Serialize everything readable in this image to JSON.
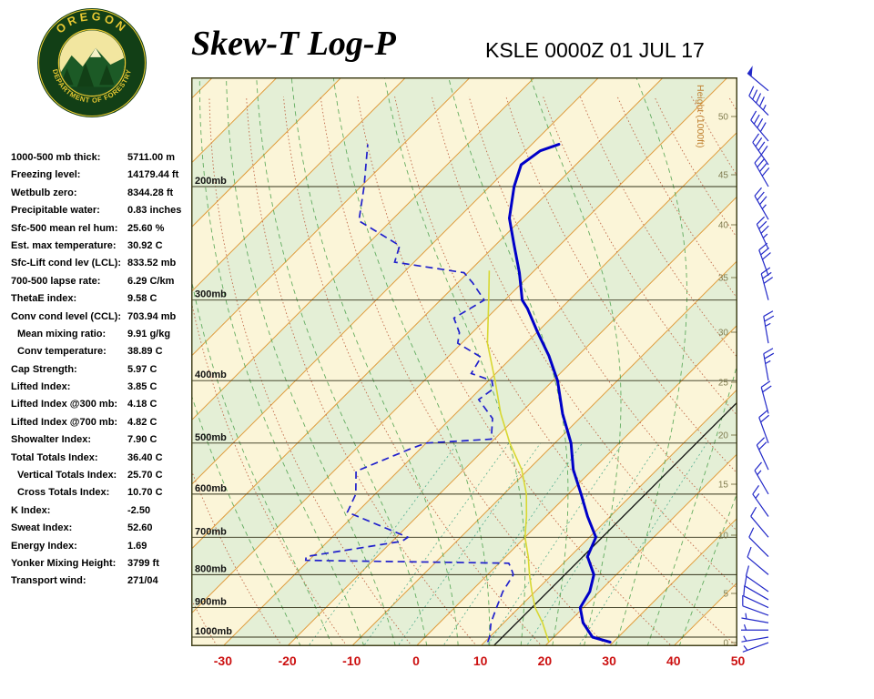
{
  "header": {
    "title": "Skew-T Log-P",
    "station_line": "KSLE 0000Z 01 JUL 17",
    "logo_top": "OREGON",
    "logo_bottom": "DEPARTMENT OF FORESTRY"
  },
  "indices": [
    {
      "label": "1000-500 mb thick:",
      "value": "5711.00 m",
      "indent": false
    },
    {
      "label": "Freezing level:",
      "value": "14179.44 ft",
      "indent": false
    },
    {
      "label": "Wetbulb zero:",
      "value": "8344.28 ft",
      "indent": false
    },
    {
      "label": "Precipitable water:",
      "value": "0.83 inches",
      "indent": false
    },
    {
      "label": "Sfc-500 mean rel hum:",
      "value": "25.60 %",
      "indent": false
    },
    {
      "label": "Est. max temperature:",
      "value": "30.92 C",
      "indent": false
    },
    {
      "label": "Sfc-Lift cond lev (LCL):",
      "value": "833.52 mb",
      "indent": false
    },
    {
      "label": "700-500 lapse rate:",
      "value": "6.29 C/km",
      "indent": false
    },
    {
      "label": "ThetaE index:",
      "value": "9.58 C",
      "indent": false
    },
    {
      "label": "Conv cond level (CCL):",
      "value": "703.94 mb",
      "indent": false
    },
    {
      "label": "Mean mixing ratio:",
      "value": "9.91 g/kg",
      "indent": true
    },
    {
      "label": "Conv temperature:",
      "value": "38.89 C",
      "indent": true
    },
    {
      "label": "Cap Strength:",
      "value": "5.97 C",
      "indent": false
    },
    {
      "label": "Lifted Index:",
      "value": "3.85 C",
      "indent": false
    },
    {
      "label": "Lifted Index @300 mb:",
      "value": "4.18 C",
      "indent": false
    },
    {
      "label": "Lifted Index @700 mb:",
      "value": "4.82 C",
      "indent": false
    },
    {
      "label": "Showalter Index:",
      "value": "7.90 C",
      "indent": false
    },
    {
      "label": "Total Totals Index:",
      "value": "36.40 C",
      "indent": false
    },
    {
      "label": "Vertical Totals Index:",
      "value": "25.70 C",
      "indent": true
    },
    {
      "label": "Cross Totals Index:",
      "value": "10.70 C",
      "indent": true
    },
    {
      "label": "K Index:",
      "value": "-2.50",
      "indent": false
    },
    {
      "label": "Sweat Index:",
      "value": "52.60",
      "indent": false
    },
    {
      "label": "Energy Index:",
      "value": "1.69",
      "indent": false
    },
    {
      "label": "Yonker Mixing Height:",
      "value": "3799 ft",
      "indent": false
    },
    {
      "label": "Transport wind:",
      "value": "271/04",
      "indent": false
    }
  ],
  "chart_data": {
    "type": "skewt-log-p",
    "title": "Skew-T Log-P",
    "station": "KSLE 0000Z 01 JUL 17",
    "pressure_axis": {
      "levels": [
        200,
        300,
        400,
        500,
        600,
        700,
        800,
        900,
        1000
      ],
      "labels": [
        "200mb",
        "300mb",
        "400mb",
        "500mb",
        "600mb",
        "700mb",
        "800mb",
        "900mb",
        "1000mb"
      ]
    },
    "temp_axis": {
      "unit": "C",
      "ticks": [
        -30,
        -20,
        -10,
        0,
        10,
        20,
        30,
        40,
        50
      ]
    },
    "height_axis": {
      "label": "Height (1000ft)",
      "ticks": [
        0,
        5,
        10,
        15,
        20,
        25,
        30,
        35,
        40,
        45,
        50
      ]
    },
    "temperature_profile": [
      [
        1018,
        29.5
      ],
      [
        1000,
        26.0
      ],
      [
        950,
        22.3
      ],
      [
        900,
        19.5
      ],
      [
        850,
        18.5
      ],
      [
        800,
        16.5
      ],
      [
        750,
        12.7
      ],
      [
        700,
        11.0
      ],
      [
        650,
        6.5
      ],
      [
        600,
        2.0
      ],
      [
        550,
        -3.0
      ],
      [
        500,
        -7.5
      ],
      [
        450,
        -13.4
      ],
      [
        400,
        -19.3
      ],
      [
        366,
        -24.5
      ],
      [
        336,
        -30.0
      ],
      [
        309,
        -35.2
      ],
      [
        300,
        -37.3
      ],
      [
        272,
        -42.0
      ],
      [
        247,
        -47.0
      ],
      [
        224,
        -52.0
      ],
      [
        200,
        -56.2
      ],
      [
        185,
        -58.5
      ],
      [
        176,
        -57.7
      ],
      [
        172,
        -55.8
      ]
    ],
    "dewpoint_profile": [
      [
        1018,
        10.5
      ],
      [
        1000,
        10.0
      ],
      [
        950,
        8.0
      ],
      [
        900,
        6.5
      ],
      [
        850,
        5.0
      ],
      [
        800,
        4.0
      ],
      [
        780,
        2.5
      ],
      [
        768,
        1.5
      ],
      [
        760,
        -30.5
      ],
      [
        750,
        -31.0
      ],
      [
        710,
        -18.5
      ],
      [
        700,
        -18.2
      ],
      [
        680,
        -22.5
      ],
      [
        640,
        -31.5
      ],
      [
        600,
        -33.0
      ],
      [
        553,
        -36.5
      ],
      [
        510,
        -31.5
      ],
      [
        500,
        -30.0
      ],
      [
        493,
        -20.5
      ],
      [
        458,
        -23.5
      ],
      [
        428,
        -28.6
      ],
      [
        412,
        -28.0
      ],
      [
        400,
        -29.5
      ],
      [
        390,
        -33.8
      ],
      [
        368,
        -34.8
      ],
      [
        350,
        -40.6
      ],
      [
        337,
        -42.0
      ],
      [
        320,
        -45.1
      ],
      [
        300,
        -43.2
      ],
      [
        282,
        -47.7
      ],
      [
        272,
        -50.6
      ],
      [
        262,
        -63.0
      ],
      [
        247,
        -64.8
      ],
      [
        226,
        -75.0
      ],
      [
        200,
        -79.5
      ],
      [
        172,
        -85.5
      ]
    ],
    "wetbulb_profile": [
      [
        1018,
        20.0
      ],
      [
        950,
        16.0
      ],
      [
        900,
        12.5
      ],
      [
        850,
        9.5
      ],
      [
        800,
        6.5
      ],
      [
        750,
        3.5
      ],
      [
        700,
        0.0
      ],
      [
        650,
        -3.0
      ],
      [
        600,
        -6.5
      ],
      [
        550,
        -11.0
      ],
      [
        500,
        -17.0
      ],
      [
        450,
        -23.0
      ],
      [
        400,
        -29.0
      ],
      [
        350,
        -36.0
      ],
      [
        300,
        -42.5
      ],
      [
        270,
        -47.0
      ]
    ],
    "reference_line_temp_c": 12,
    "winds": [
      {
        "p": 1020,
        "dir": 250,
        "spd": 4
      },
      {
        "p": 1000,
        "dir": 260,
        "spd": 5
      },
      {
        "p": 975,
        "dir": 270,
        "spd": 5
      },
      {
        "p": 950,
        "dir": 280,
        "spd": 7
      },
      {
        "p": 925,
        "dir": 290,
        "spd": 8
      },
      {
        "p": 900,
        "dir": 295,
        "spd": 10
      },
      {
        "p": 875,
        "dir": 300,
        "spd": 10
      },
      {
        "p": 850,
        "dir": 305,
        "spd": 10
      },
      {
        "p": 800,
        "dir": 310,
        "spd": 12
      },
      {
        "p": 750,
        "dir": 315,
        "spd": 10
      },
      {
        "p": 700,
        "dir": 320,
        "spd": 12
      },
      {
        "p": 650,
        "dir": 325,
        "spd": 15
      },
      {
        "p": 600,
        "dir": 330,
        "spd": 15
      },
      {
        "p": 550,
        "dir": 335,
        "spd": 18
      },
      {
        "p": 500,
        "dir": 340,
        "spd": 20
      },
      {
        "p": 450,
        "dir": 345,
        "spd": 20
      },
      {
        "p": 400,
        "dir": 350,
        "spd": 25
      },
      {
        "p": 350,
        "dir": 350,
        "spd": 27
      },
      {
        "p": 300,
        "dir": 345,
        "spd": 30
      },
      {
        "p": 275,
        "dir": 340,
        "spd": 30
      },
      {
        "p": 250,
        "dir": 335,
        "spd": 35
      },
      {
        "p": 225,
        "dir": 330,
        "spd": 35
      },
      {
        "p": 200,
        "dir": 330,
        "spd": 38
      },
      {
        "p": 185,
        "dir": 325,
        "spd": 40
      },
      {
        "p": 170,
        "dir": 320,
        "spd": 42
      },
      {
        "p": 155,
        "dir": 315,
        "spd": 45
      },
      {
        "p": 142,
        "dir": 310,
        "spd": 48
      }
    ],
    "adiabats": {
      "dry_theta_k": [
        230,
        240,
        250,
        260,
        270,
        280,
        290,
        300,
        310,
        320,
        330,
        340,
        350,
        360,
        370,
        380,
        390,
        400,
        410,
        420,
        430,
        440,
        450,
        460,
        470
      ],
      "moist_start_c": [
        -20,
        -15,
        -10,
        -5,
        0,
        5,
        10,
        15,
        20,
        25,
        30,
        35,
        40
      ],
      "mixing_ratio_gkg": [
        1,
        2,
        3,
        5,
        8,
        12,
        20
      ]
    },
    "colors": {
      "band_a": "#fbf5d8",
      "band_b": "#e4efd6",
      "isotherm": "#e09c3c",
      "dry_adiabat": "#c06848",
      "moist_adiabat": "#4aa04a",
      "mixing_ratio": "#2e9e7e",
      "pressure_line": "#33331a",
      "pressure_text": "#111111",
      "border": "#44441f",
      "temperature": "#0000c8",
      "dewpoint": "#2020cc",
      "wetbulb": "#d8d832",
      "reference": "#111111",
      "height_text": "#807c50",
      "height_label": "#c08030",
      "temp_tick_text": "#cc1111",
      "wind": "#2228c8"
    }
  }
}
